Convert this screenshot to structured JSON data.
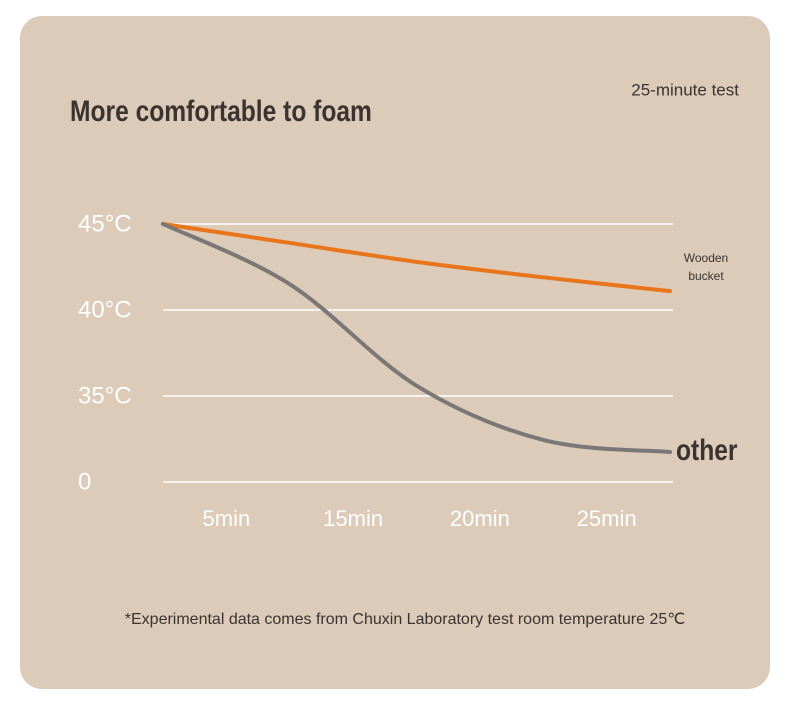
{
  "chart_data": {
    "type": "line",
    "title": "More comfortable to foam",
    "subtitle": "25-minute test",
    "note": "*Experimental data comes from Chuxin Laboratory test room temperature 25℃",
    "categories": [
      null,
      "5min",
      "15min",
      "20min",
      "25min"
    ],
    "series": [
      {
        "name": "Wooden bucket",
        "color": "#e8751a",
        "values": [
          45,
          43.9,
          42.8,
          41.9,
          41.1
        ]
      },
      {
        "name": "other",
        "color": "#7b7776",
        "values": [
          45,
          41.5,
          35.6,
          17.1,
          12.2
        ]
      }
    ],
    "ylim": [
      0,
      45
    ],
    "yticks": [
      {
        "value": 0,
        "label": "0"
      },
      {
        "value": 35,
        "label": "35°C"
      },
      {
        "value": 40,
        "label": "40°C"
      },
      {
        "value": 45,
        "label": "45°C"
      }
    ],
    "axis_break": true,
    "grid": true
  }
}
